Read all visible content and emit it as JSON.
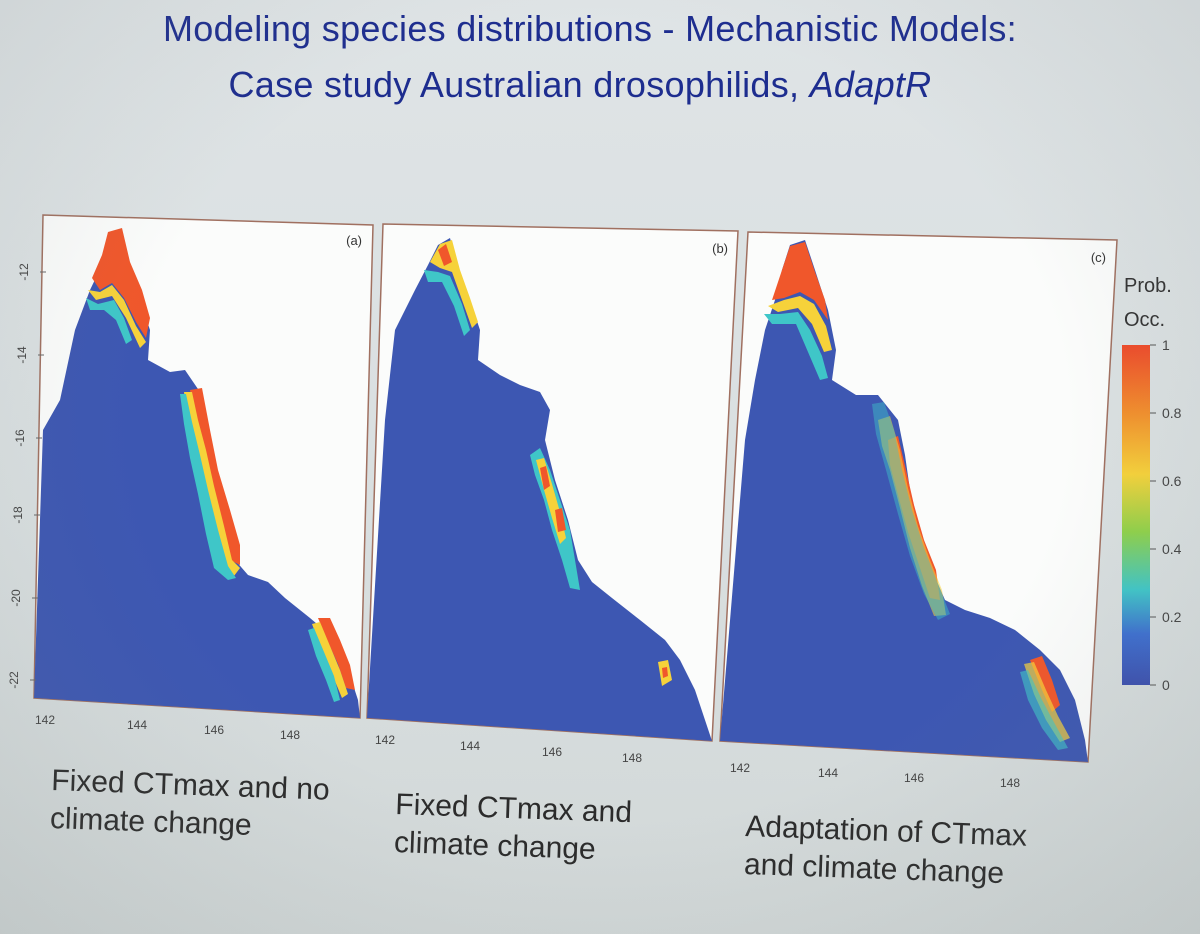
{
  "slide": {
    "title_line1": "Modeling species distributions - Mechanistic Models:",
    "title_line2_prefix": "Case study Australian drosophilids, ",
    "title_line2_italic": "AdaptR"
  },
  "panels": [
    {
      "letter": "(a)",
      "caption_line1": "Fixed CTmax and no",
      "caption_line2": "climate change"
    },
    {
      "letter": "(b)",
      "caption_line1": "Fixed CTmax and",
      "caption_line2": "climate change"
    },
    {
      "letter": "(c)",
      "caption_line1": "Adaptation of CTmax",
      "caption_line2": "and climate change"
    }
  ],
  "axes": {
    "x_ticks": [
      "142",
      "144",
      "146",
      "148"
    ],
    "y_ticks": [
      "-12",
      "-14",
      "-16",
      "-18",
      "-20",
      "-22"
    ]
  },
  "legend": {
    "title_line1": "Prob.",
    "title_line2": "Occ.",
    "ticks": [
      "1",
      "0.8",
      "0.6",
      "0.4",
      "0.2",
      "0"
    ]
  },
  "colors": {
    "title": "#1d2d8f",
    "land_low": "#3d57b2",
    "high": "#f0572b",
    "mid": "#f6d23a",
    "low_mid": "#3fc6c8"
  }
}
